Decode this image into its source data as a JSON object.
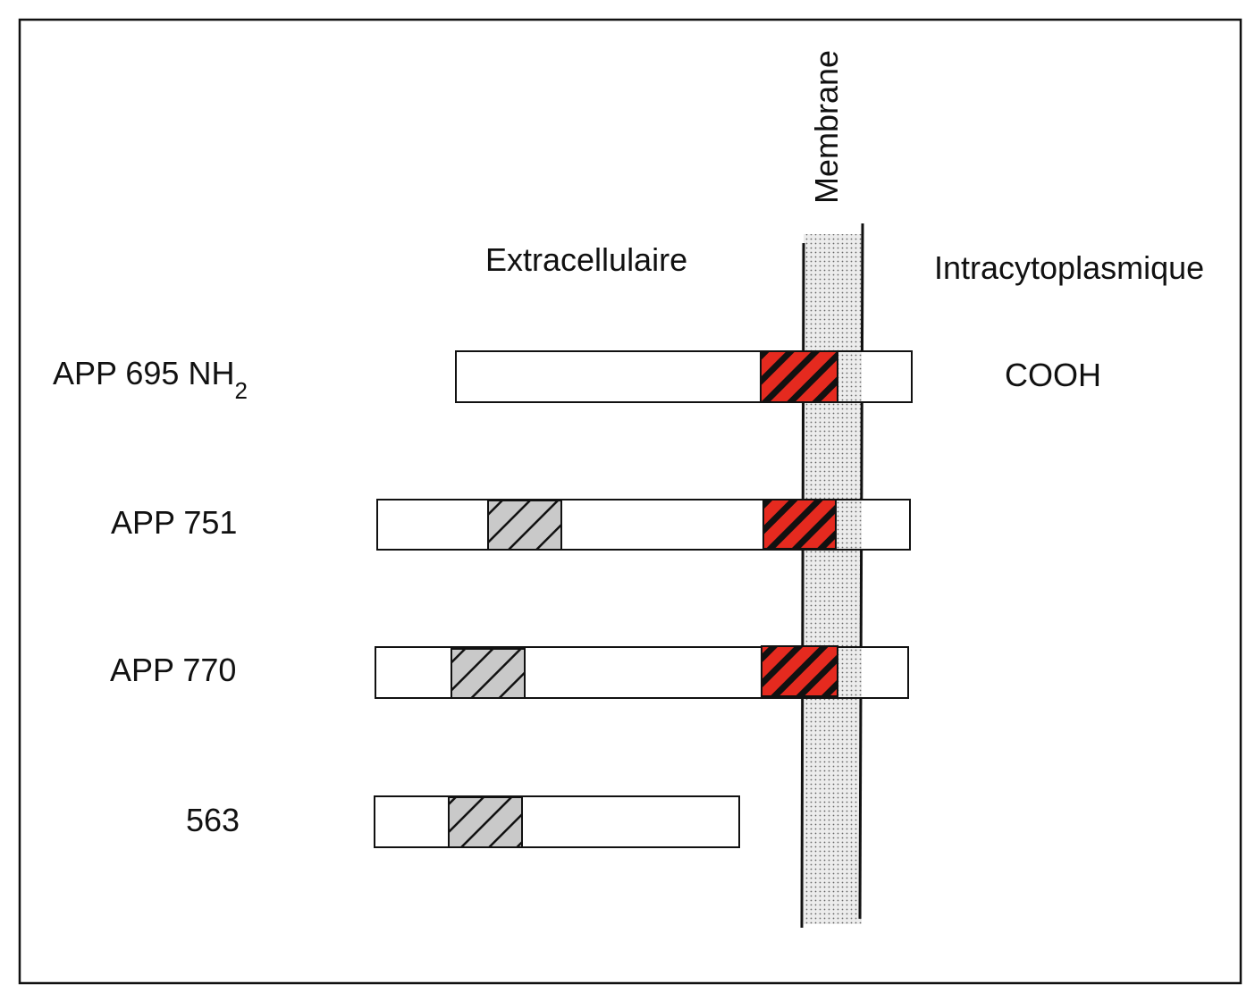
{
  "membrane": {
    "label": "Membrane"
  },
  "regions": {
    "extracellular": "Extracellulaire",
    "intracellular": "Intracytoplasmique"
  },
  "terminals": {
    "n_main": "APP 695 NH",
    "n_sub": "2",
    "c": "COOH"
  },
  "proteins": [
    {
      "label": "APP 695",
      "has_kpi_domain": false,
      "has_abeta_domain": true
    },
    {
      "label": "APP 751",
      "has_kpi_domain": true,
      "has_abeta_domain": true
    },
    {
      "label": "APP 770",
      "has_kpi_domain": true,
      "has_abeta_domain": true
    },
    {
      "label": "563",
      "has_kpi_domain": true,
      "has_abeta_domain": false
    }
  ],
  "colors": {
    "abeta_domain": "#e52a1f",
    "kpi_domain": "#c8c8c8",
    "membrane": "#d9d9d9",
    "outline": "#111111"
  }
}
